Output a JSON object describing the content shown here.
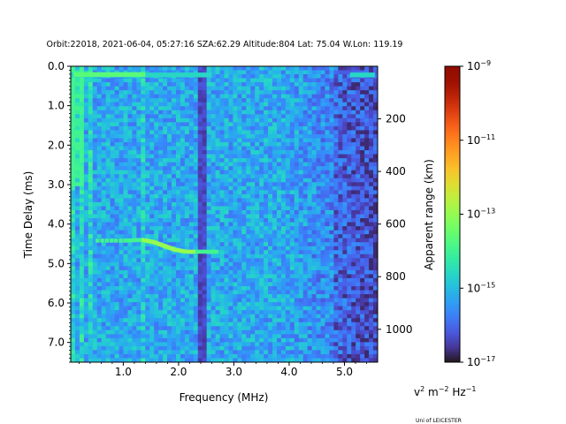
{
  "chart_data": {
    "type": "heatmap",
    "title": "Orbit:22018, 2021-06-04, 05:27:16 SZA:62.29 Altitude:804 Lat: 75.04 W.Lon: 119.19",
    "xlabel": "Frequency (MHz)",
    "ylabel": "Time Delay (ms)",
    "y2label": "Apparent range (km)",
    "xlim": [
      0.05,
      5.6
    ],
    "ylim": [
      7.5,
      0.0
    ],
    "xticks": [
      1.0,
      2.0,
      3.0,
      4.0,
      5.0
    ],
    "xtick_labels": [
      "1.0",
      "2.0",
      "3.0",
      "4.0",
      "5.0"
    ],
    "yticks": [
      0.0,
      1.0,
      2.0,
      3.0,
      4.0,
      5.0,
      6.0,
      7.0
    ],
    "ytick_labels": [
      "0.0",
      "1.0",
      "2.0",
      "3.0",
      "4.0",
      "5.0",
      "6.0",
      "7.0"
    ],
    "y2ticks": [
      200,
      400,
      600,
      800,
      1000
    ],
    "y2tick_labels": [
      "200",
      "400",
      "600",
      "800",
      "1000"
    ],
    "km_per_ms": 150,
    "colorbar": {
      "label_base": "v",
      "label_rest": " m",
      "label_rest2": " Hz",
      "sup1": "2",
      "sup2": "−2",
      "sup3": "−1",
      "scale": "log",
      "range": [
        1e-17,
        1e-09
      ],
      "tick_values": [
        1e-17,
        1e-15,
        1e-13,
        1e-11,
        1e-09
      ],
      "tick_exponents": [
        "−17",
        "−15",
        "−13",
        "−11",
        "−9"
      ],
      "tick_base": "10",
      "colormap": "turbo"
    },
    "features": {
      "echo_trace": [
        {
          "f": 0.5,
          "t": 4.42
        },
        {
          "f": 1.0,
          "t": 4.42
        },
        {
          "f": 1.3,
          "t": 4.4
        },
        {
          "f": 1.5,
          "t": 4.45
        },
        {
          "f": 1.7,
          "t": 4.55
        },
        {
          "f": 1.9,
          "t": 4.65
        },
        {
          "f": 2.1,
          "t": 4.7
        },
        {
          "f": 2.4,
          "t": 4.7
        },
        {
          "f": 2.7,
          "t": 4.7
        }
      ],
      "top_band_ms": 0.2,
      "dark_column_mhz": 2.4,
      "bright_column_mhz": 1.33
    }
  },
  "credit": "Uni of LEICESTER"
}
